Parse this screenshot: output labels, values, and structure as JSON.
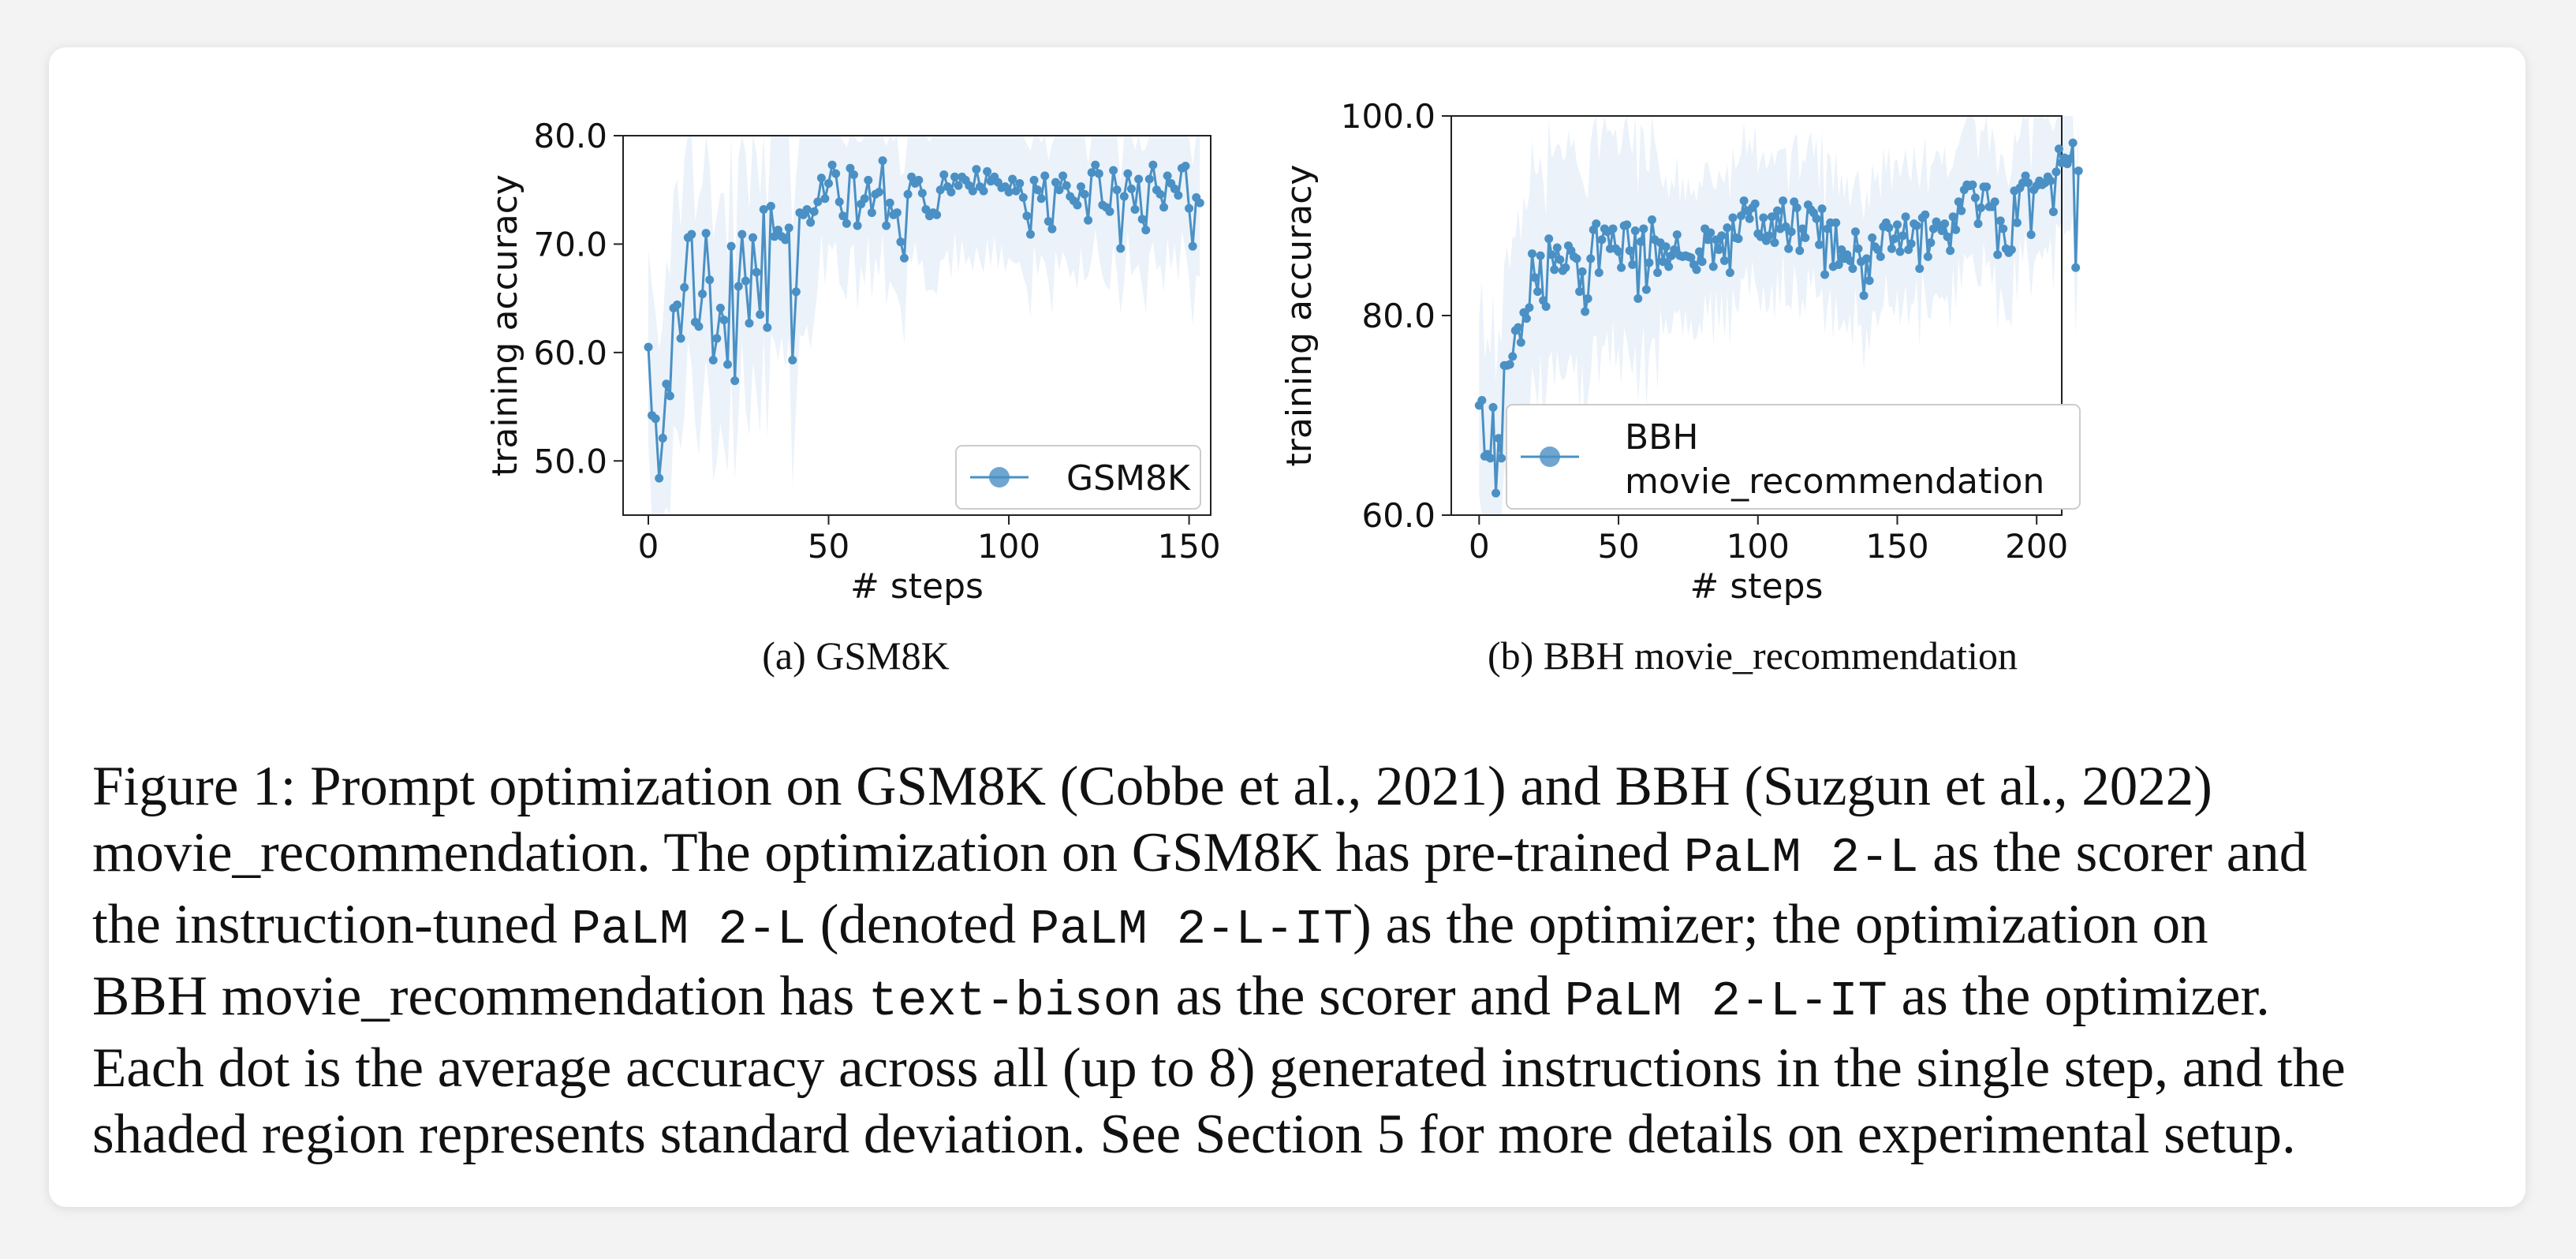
{
  "chart_data": [
    {
      "type": "line",
      "xlabel": "# steps",
      "ylabel": "training accuracy",
      "xlim": [
        -7,
        156
      ],
      "ylim": [
        45,
        80
      ],
      "xticks": [
        0,
        50,
        100,
        150
      ],
      "yticks": [
        50,
        60,
        70,
        80
      ],
      "xtick_labels": [
        "0",
        "50",
        "100",
        "150"
      ],
      "ytick_labels": [
        "50.0",
        "60.0",
        "70.0",
        "80.0"
      ],
      "legend": "GSM8K",
      "legend_position": "lower-right",
      "subcaption": "(a) GSM8K",
      "series": [
        {
          "name": "GSM8K",
          "color": "#4a90c4",
          "y": [
            60.5,
            54.2,
            53.9,
            48.4,
            52.1,
            57.1,
            56,
            64.1,
            64.4,
            61.3,
            66,
            70.6,
            70.9,
            62.8,
            62.4,
            65.4,
            71,
            66.7,
            59.3,
            61.3,
            64.1,
            63,
            58.9,
            69.8,
            57.4,
            66.1,
            70.9,
            66.6,
            62.7,
            70.6,
            67.4,
            63.5,
            73.2,
            62.3,
            73.5,
            70.7,
            71.3,
            70.7,
            70.4,
            71.5,
            59.3,
            65.6,
            72.9,
            72.7,
            73.2,
            72,
            73,
            73.9,
            76.1,
            74.2,
            75.6,
            77.3,
            76.5,
            73.9,
            72.6,
            71.9,
            77,
            76.4,
            71.7,
            73.7,
            74.2,
            75.9,
            72.9,
            74.6,
            74.8,
            77.7,
            71.7,
            73.8,
            72.7,
            72.9,
            70.2,
            68.7,
            74.6,
            76.2,
            75.6,
            75.9,
            74.7,
            73.2,
            72.6,
            72.9,
            72.7,
            75,
            76.4,
            75.3,
            74.8,
            76.2,
            75.4,
            76.2,
            75.9,
            75.4,
            74.9,
            76.9,
            75.3,
            74.9,
            76.7,
            75.8,
            76.2,
            75.7,
            75.2,
            75.3,
            74.8,
            76,
            74.9,
            75.6,
            74.3,
            72.6,
            70.9,
            75.9,
            75,
            74.2,
            76.3,
            72.1,
            71.4,
            75.7,
            75,
            76.3,
            75.4,
            74.4,
            74,
            73.6,
            75.3,
            74.6,
            72.2,
            76.6,
            77.3,
            76.5,
            73.6,
            73.4,
            73,
            76.8,
            75,
            69.6,
            74.4,
            76.5,
            75.1,
            73.2,
            76,
            72.3,
            71.3,
            76,
            77.3,
            75,
            74.6,
            73.4,
            76.3,
            75.6,
            75.1,
            74.5,
            77,
            77.2,
            73.3,
            69.8,
            74.3,
            73.8
          ]
        }
      ]
    },
    {
      "type": "line",
      "xlabel": "# steps",
      "ylabel": "training accuracy",
      "xlim": [
        -10,
        209
      ],
      "ylim": [
        60,
        100
      ],
      "xticks": [
        0,
        50,
        100,
        150,
        200
      ],
      "yticks": [
        60,
        80,
        100
      ],
      "xtick_labels": [
        "0",
        "50",
        "100",
        "150",
        "200"
      ],
      "ytick_labels": [
        "60.0",
        "80.0",
        "100.0"
      ],
      "legend": "BBH\nmovie_recommendation",
      "legend_lines": [
        "BBH",
        "movie_recommendation"
      ],
      "legend_position": "lower-right",
      "subcaption": "(b) BBH movie_recommendation",
      "series": [
        {
          "name": "BBH movie_recommendation",
          "color": "#4a90c4",
          "y": [
            71,
            71.5,
            65.9,
            66.1,
            65.7,
            70.8,
            62.2,
            67.7,
            65.7,
            75,
            75,
            75.1,
            75.9,
            78.5,
            78.8,
            77.3,
            80.3,
            79.7,
            80.8,
            86.2,
            83.8,
            82.4,
            86,
            81.5,
            80.9,
            87.7,
            86.1,
            84.6,
            86.8,
            85.6,
            84.5,
            84.8,
            87,
            86.5,
            85.9,
            85.7,
            82.4,
            84.4,
            80.4,
            81.7,
            85.7,
            88.6,
            89.2,
            84.3,
            87.6,
            88.7,
            88.4,
            86.7,
            88.7,
            86.7,
            86.4,
            84.8,
            89,
            89.1,
            86.5,
            85.1,
            88.5,
            81.7,
            87.4,
            88.7,
            82.6,
            85.3,
            89.6,
            87.6,
            84.3,
            87.3,
            85.4,
            86.9,
            84.9,
            86,
            86.6,
            88.1,
            86,
            85.9,
            86,
            85.9,
            85.8,
            85.1,
            84.6,
            86.4,
            85.4,
            88.7,
            87.6,
            88.3,
            84.9,
            87.6,
            86.6,
            88,
            85.5,
            88.8,
            84.3,
            89.8,
            87.8,
            87.7,
            90,
            91.5,
            90.5,
            89.7,
            90.8,
            91.2,
            88.2,
            87.9,
            89.8,
            87.5,
            88,
            89.9,
            87.3,
            90.5,
            88.7,
            91.5,
            88.9,
            86.7,
            88.4,
            91.4,
            90.8,
            86.5,
            88.7,
            87.8,
            91.1,
            90.6,
            90.3,
            89.7,
            87.1,
            90.7,
            84.1,
            88.7,
            89.3,
            84.9,
            89.3,
            85.1,
            86.6,
            85.7,
            86.1,
            85.5,
            84.7,
            88.4,
            86.7,
            85.4,
            82,
            85.7,
            83.5,
            87.8,
            86.9,
            86.6,
            85.9,
            88.9,
            89.3,
            88.8,
            86.7,
            87.7,
            89.1,
            86.4,
            88,
            89.9,
            86.6,
            87.2,
            89.2,
            89,
            84.7,
            89.8,
            90.1,
            85.9,
            87.3,
            88.7,
            89.4,
            89,
            88.5,
            89.2,
            87.9,
            86.5,
            89.9,
            88.6,
            91.4,
            90.5,
            92.6,
            93.1,
            93,
            93.1,
            91.8,
            89.2,
            90.8,
            92.9,
            92.9,
            90.9,
            90.9,
            91.4,
            86.1,
            89.5,
            88.7,
            86.7,
            86.3,
            86.6,
            92.5,
            89.3,
            92.8,
            93.3,
            94,
            93.3,
            88.1,
            92.6,
            93,
            93.5,
            93.1,
            93.3,
            93.9,
            93.5,
            90.4,
            94.4,
            96.7,
            95.3,
            95.8,
            95.2,
            95.7,
            97.3,
            84.8,
            94.5
          ]
        }
      ]
    }
  ],
  "caption": {
    "lines": [
      [
        {
          "t": "Figure 1: Prompt optimization on GSM8K (Cobbe et al., 2021) and BBH (Suzgun et al., 2022)",
          "mono": false
        }
      ],
      [
        {
          "t": "movie_recommendation. The optimization on GSM8K has pre-trained ",
          "mono": false
        },
        {
          "t": "PaLM 2-L",
          "mono": true
        },
        {
          "t": " as the scorer and",
          "mono": false
        }
      ],
      [
        {
          "t": "the instruction-tuned ",
          "mono": false
        },
        {
          "t": "PaLM 2-L",
          "mono": true
        },
        {
          "t": " (denoted ",
          "mono": false
        },
        {
          "t": "PaLM 2-L-IT",
          "mono": true
        },
        {
          "t": ") as the optimizer; the optimization on",
          "mono": false
        }
      ],
      [
        {
          "t": "BBH movie_recommendation has ",
          "mono": false
        },
        {
          "t": "text-bison",
          "mono": true
        },
        {
          "t": " as the scorer and ",
          "mono": false
        },
        {
          "t": "PaLM 2-L-IT",
          "mono": true
        },
        {
          "t": " as the optimizer.",
          "mono": false
        }
      ],
      [
        {
          "t": "Each dot is the average accuracy across all (up to 8) generated instructions in the single step, and the",
          "mono": false
        }
      ],
      [
        {
          "t": "shaded region represents standard deviation. See Section 5 for more details on experimental setup.",
          "mono": false
        }
      ]
    ]
  }
}
